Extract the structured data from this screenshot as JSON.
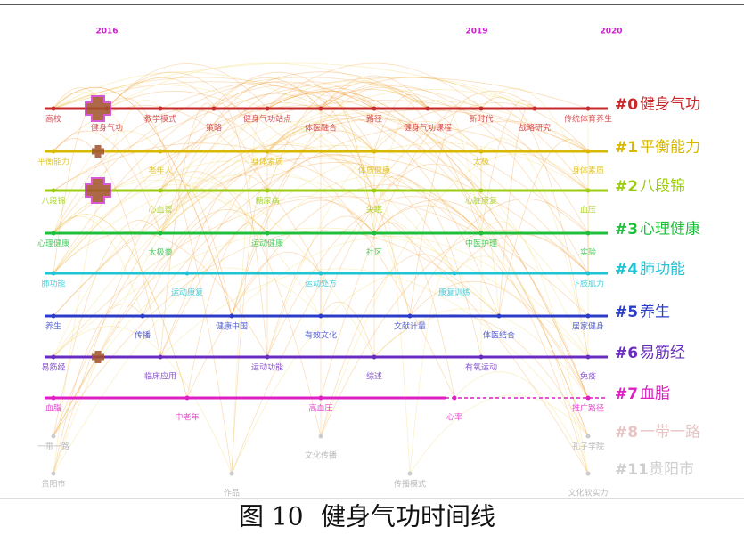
{
  "years": [
    "2016",
    "2019",
    "2020"
  ],
  "clusters": [
    {
      "id": "#0",
      "label": "健身气功",
      "color": "#c8282a",
      "keywords": [
        "高校",
        "健身气功",
        "教学模式",
        "策略",
        "健身气功站点",
        "体医融合",
        "路径",
        "健身气功课程",
        "新时代",
        "战略研究",
        "传统体育养生"
      ]
    },
    {
      "id": "#1",
      "label": "平衡能力",
      "color": "#d8b800",
      "keywords": [
        "平衡能力",
        "老年人",
        "身体素质",
        "体质健康",
        "太极",
        "身体素质"
      ]
    },
    {
      "id": "#2",
      "label": "八段锦",
      "color": "#9ccc10",
      "keywords": [
        "八段锦",
        "心血管",
        "糖尿病",
        "失眠",
        "心脏康复",
        "血压"
      ]
    },
    {
      "id": "#3",
      "label": "心理健康",
      "color": "#1fbf3c",
      "keywords": [
        "心理健康",
        "太极拳",
        "运动健康",
        "社区",
        "中医护理",
        "实验"
      ]
    },
    {
      "id": "#4",
      "label": "肺功能",
      "color": "#1fc4d4",
      "keywords": [
        "肺功能",
        "运动康复",
        "运动处方",
        "康复训练",
        "下肢肌力"
      ]
    },
    {
      "id": "#5",
      "label": "养生",
      "color": "#2c3cc8",
      "keywords": [
        "养生",
        "传播",
        "健康中国",
        "有效文化",
        "文献计量",
        "体医结合",
        "居家健身"
      ]
    },
    {
      "id": "#6",
      "label": "易筋经",
      "color": "#6a2cc0",
      "keywords": [
        "易筋经",
        "临床应用",
        "运动功能",
        "综述",
        "有氧运动",
        "免疫"
      ]
    },
    {
      "id": "#7",
      "label": "血脂",
      "color": "#de1fc4",
      "keywords": [
        "血脂",
        "中老年",
        "高血压",
        "心率",
        "推广路径"
      ]
    },
    {
      "id": "#8",
      "label": "一带一路",
      "color": "#e8c4c4",
      "keywords": [
        "一带一路",
        "文化传播",
        "孔子学院"
      ]
    },
    {
      "id": "#11",
      "label": "贵阳市",
      "color": "#cfcfcf",
      "keywords": [
        "贵阳市",
        "作品",
        "传播模式",
        "文化软实力"
      ]
    }
  ],
  "caption": {
    "number": "图 10",
    "title": "健身气功时间线"
  }
}
